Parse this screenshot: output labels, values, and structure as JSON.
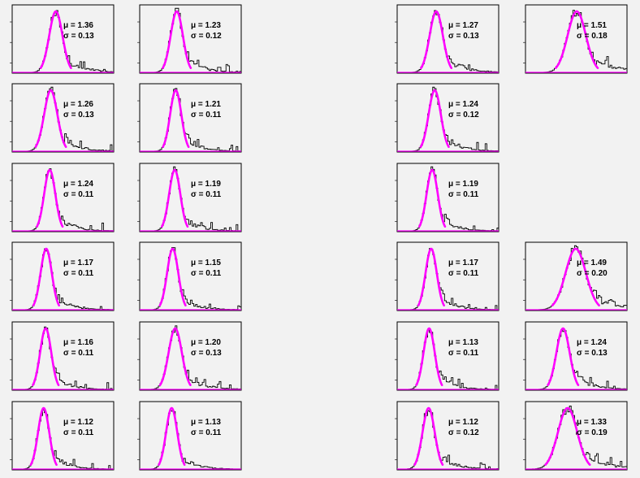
{
  "figure": {
    "background": "#f2f2f2",
    "frame_color": "#000000",
    "fit_color": "#ff00ff",
    "hist_color": "#000000",
    "mu_symbol": "μ",
    "sigma_symbol": "σ"
  },
  "chart_data": [
    {
      "type": "histogram",
      "row": 0,
      "col": 0,
      "mu": "1.36",
      "sigma": "0.13"
    },
    {
      "type": "histogram",
      "row": 0,
      "col": 1,
      "mu": "1.23",
      "sigma": "0.12"
    },
    {
      "type": "histogram",
      "row": 0,
      "col": 3,
      "mu": "1.27",
      "sigma": "0.13"
    },
    {
      "type": "histogram",
      "row": 0,
      "col": 4,
      "mu": "1.51",
      "sigma": "0.18"
    },
    {
      "type": "histogram",
      "row": 1,
      "col": 0,
      "mu": "1.26",
      "sigma": "0.13"
    },
    {
      "type": "histogram",
      "row": 1,
      "col": 1,
      "mu": "1.21",
      "sigma": "0.11"
    },
    {
      "type": "histogram",
      "row": 1,
      "col": 3,
      "mu": "1.24",
      "sigma": "0.12"
    },
    {
      "type": "histogram",
      "row": 2,
      "col": 0,
      "mu": "1.24",
      "sigma": "0.11"
    },
    {
      "type": "histogram",
      "row": 2,
      "col": 1,
      "mu": "1.19",
      "sigma": "0.11"
    },
    {
      "type": "histogram",
      "row": 2,
      "col": 3,
      "mu": "1.19",
      "sigma": "0.11"
    },
    {
      "type": "histogram",
      "row": 3,
      "col": 0,
      "mu": "1.17",
      "sigma": "0.11"
    },
    {
      "type": "histogram",
      "row": 3,
      "col": 1,
      "mu": "1.15",
      "sigma": "0.11"
    },
    {
      "type": "histogram",
      "row": 3,
      "col": 3,
      "mu": "1.17",
      "sigma": "0.11"
    },
    {
      "type": "histogram",
      "row": 3,
      "col": 4,
      "mu": "1.49",
      "sigma": "0.20"
    },
    {
      "type": "histogram",
      "row": 4,
      "col": 0,
      "mu": "1.16",
      "sigma": "0.11"
    },
    {
      "type": "histogram",
      "row": 4,
      "col": 1,
      "mu": "1.20",
      "sigma": "0.13"
    },
    {
      "type": "histogram",
      "row": 4,
      "col": 3,
      "mu": "1.13",
      "sigma": "0.11"
    },
    {
      "type": "histogram",
      "row": 4,
      "col": 4,
      "mu": "1.24",
      "sigma": "0.13"
    },
    {
      "type": "histogram",
      "row": 5,
      "col": 0,
      "mu": "1.12",
      "sigma": "0.11"
    },
    {
      "type": "histogram",
      "row": 5,
      "col": 1,
      "mu": "1.13",
      "sigma": "0.11"
    },
    {
      "type": "histogram",
      "row": 5,
      "col": 3,
      "mu": "1.12",
      "sigma": "0.12"
    },
    {
      "type": "histogram",
      "row": 5,
      "col": 4,
      "mu": "1.33",
      "sigma": "0.19"
    }
  ]
}
